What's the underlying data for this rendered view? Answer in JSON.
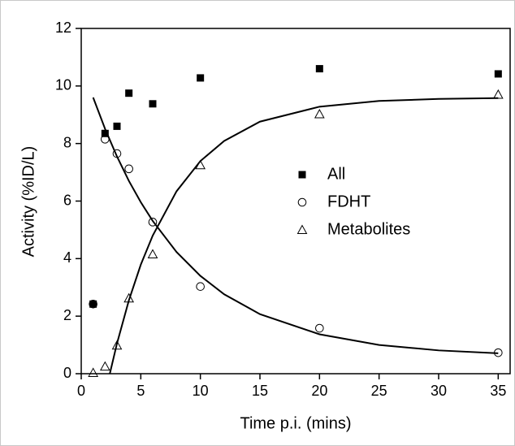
{
  "chart_data": {
    "type": "scatter",
    "xlabel": "Time p.i. (mins)",
    "ylabel": "Activity (%ID/L)",
    "xlim": [
      0,
      36
    ],
    "ylim": [
      0,
      12
    ],
    "xticks": [
      0,
      5,
      10,
      15,
      20,
      25,
      30,
      35
    ],
    "yticks": [
      0,
      2,
      4,
      6,
      8,
      10,
      12
    ],
    "legend": "center-right",
    "series": [
      {
        "name": "All",
        "marker": "square",
        "color": "#000000",
        "x": [
          1,
          2,
          3,
          4,
          6,
          10,
          20,
          35
        ],
        "values": [
          2.42,
          8.35,
          8.6,
          9.75,
          9.38,
          10.28,
          10.6,
          10.42
        ]
      },
      {
        "name": "FDHT",
        "marker": "circle",
        "color": "#000000",
        "x": [
          1,
          2,
          3,
          4,
          6,
          10,
          20,
          35
        ],
        "values": [
          2.42,
          8.15,
          7.65,
          7.12,
          5.27,
          3.03,
          1.58,
          0.73
        ]
      },
      {
        "name": "Metabolites",
        "marker": "triangle",
        "color": "#000000",
        "x": [
          1,
          2,
          3,
          4,
          6,
          10,
          20,
          35
        ],
        "values": [
          0.03,
          0.25,
          0.98,
          2.62,
          4.15,
          7.25,
          9.02,
          9.7
        ]
      },
      {
        "style": "line",
        "color": "#000000",
        "x": [
          1,
          2,
          3,
          4,
          5,
          6,
          8,
          10,
          12,
          15,
          20,
          25,
          30,
          35
        ],
        "values": [
          9.6,
          8.51,
          7.55,
          6.7,
          5.96,
          5.31,
          4.23,
          3.4,
          2.76,
          2.07,
          1.37,
          1.0,
          0.81,
          0.71
        ]
      },
      {
        "style": "line",
        "color": "#000000",
        "x": [
          2.4,
          3,
          4,
          5,
          6,
          8,
          10,
          12,
          15,
          20,
          25,
          30,
          35
        ],
        "values": [
          0,
          1.05,
          2.55,
          3.79,
          4.8,
          6.34,
          7.39,
          8.09,
          8.76,
          9.28,
          9.48,
          9.55,
          9.58
        ]
      }
    ]
  }
}
